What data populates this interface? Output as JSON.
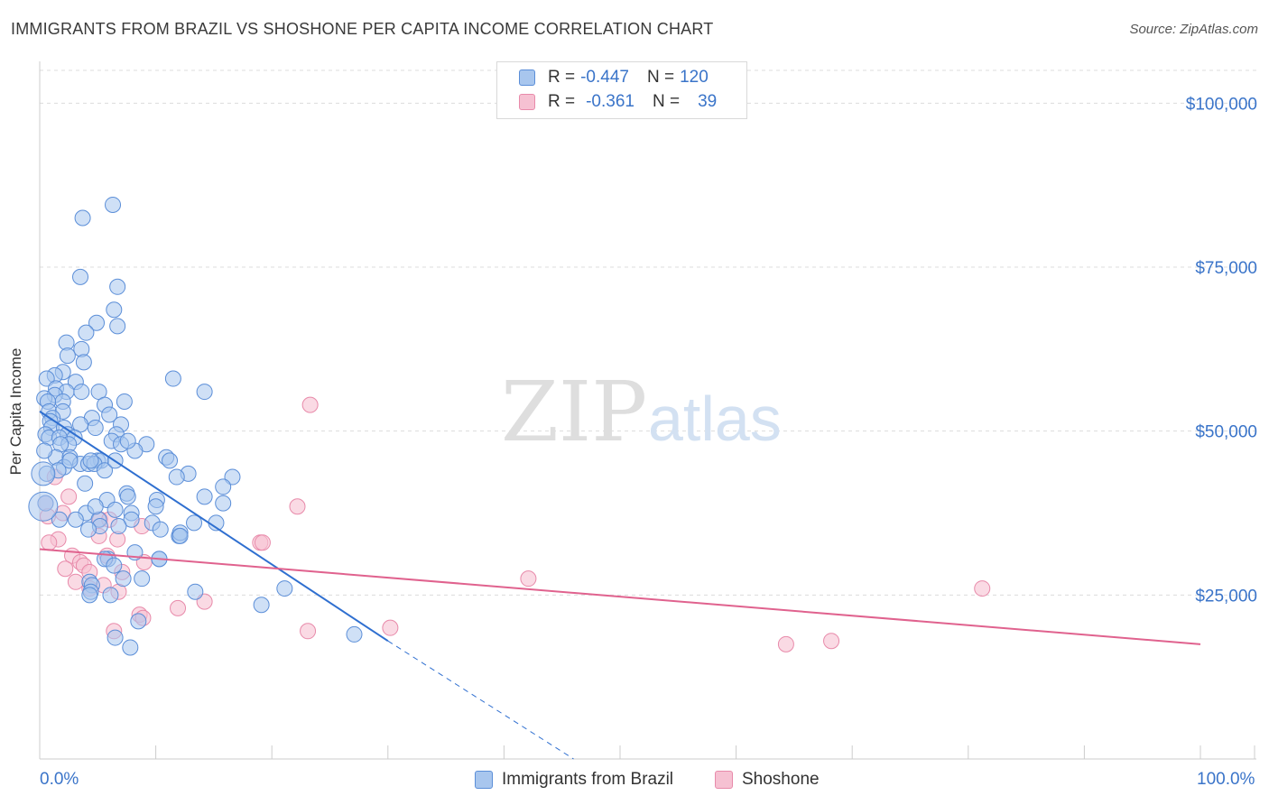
{
  "title": "IMMIGRANTS FROM BRAZIL VS SHOSHONE PER CAPITA INCOME CORRELATION CHART",
  "source": "Source: ZipAtlas.com",
  "watermark_zip": "ZIP",
  "watermark_atlas": "atlas",
  "legend": {
    "row1": {
      "r_label": "R =",
      "r_value": "-0.447",
      "n_label": "N =",
      "n_value": "120"
    },
    "row2": {
      "r_label": "R =",
      "r_value": "-0.361",
      "n_label": "N =",
      "n_value": "39"
    }
  },
  "x_axis": {
    "min_label": "0.0%",
    "max_label": "100.0%"
  },
  "colors": {
    "blue": "#5b8ed8",
    "blue_fill": "#a8c6ee",
    "blue_line": "#2f6fd0",
    "pink": "#e88aaa",
    "pink_fill": "#f6c1d2",
    "pink_line": "#e0628e",
    "axis_text": "#3a74c9"
  },
  "chart_data": {
    "type": "scatter",
    "title": "IMMIGRANTS FROM BRAZIL VS SHOSHONE PER CAPITA INCOME CORRELATION CHART",
    "xlabel": "",
    "ylabel": "Per Capita Income",
    "xlim": [
      0,
      100
    ],
    "ylim": [
      0,
      105000
    ],
    "y_ticks": [
      25000,
      50000,
      75000,
      100000
    ],
    "y_tick_labels": [
      "$25,000",
      "$50,000",
      "$75,000",
      "$100,000"
    ],
    "series": [
      {
        "name": "Immigrants from Brazil",
        "r": -0.447,
        "n": 120,
        "trend": {
          "x0": 0,
          "y0": 53000,
          "x1": 30,
          "y1": 18000,
          "dash_x_end": 46,
          "dash_y_end": 0
        },
        "points": [
          [
            6.3,
            84500
          ],
          [
            3.7,
            82500
          ],
          [
            3.5,
            73500
          ],
          [
            6.7,
            72000
          ],
          [
            6.4,
            68500
          ],
          [
            4.9,
            66500
          ],
          [
            6.7,
            66000
          ],
          [
            4.0,
            65000
          ],
          [
            2.3,
            63500
          ],
          [
            3.6,
            62500
          ],
          [
            2.4,
            61500
          ],
          [
            3.8,
            60500
          ],
          [
            2.0,
            59000
          ],
          [
            1.3,
            58500
          ],
          [
            0.6,
            58000
          ],
          [
            11.5,
            58000
          ],
          [
            3.1,
            57500
          ],
          [
            1.4,
            56500
          ],
          [
            2.3,
            56000
          ],
          [
            3.6,
            56000
          ],
          [
            5.1,
            56000
          ],
          [
            14.2,
            56000
          ],
          [
            1.3,
            55500
          ],
          [
            0.4,
            55000
          ],
          [
            2.0,
            54500
          ],
          [
            7.3,
            54500
          ],
          [
            0.7,
            54500
          ],
          [
            5.6,
            54000
          ],
          [
            0.8,
            53000
          ],
          [
            2.0,
            53000
          ],
          [
            6.0,
            52500
          ],
          [
            1.1,
            52000
          ],
          [
            4.5,
            52000
          ],
          [
            0.9,
            51500
          ],
          [
            3.5,
            51000
          ],
          [
            1.0,
            50500
          ],
          [
            7.0,
            51000
          ],
          [
            4.8,
            50500
          ],
          [
            2.1,
            50500
          ],
          [
            0.5,
            49500
          ],
          [
            0.8,
            49000
          ],
          [
            2.4,
            49500
          ],
          [
            6.6,
            49500
          ],
          [
            1.7,
            49000
          ],
          [
            3.0,
            49000
          ],
          [
            6.2,
            48500
          ],
          [
            2.5,
            48000
          ],
          [
            1.8,
            48000
          ],
          [
            7.0,
            48000
          ],
          [
            9.2,
            48000
          ],
          [
            8.2,
            47000
          ],
          [
            1.4,
            46000
          ],
          [
            2.6,
            46000
          ],
          [
            5.0,
            45500
          ],
          [
            3.5,
            45000
          ],
          [
            4.2,
            45000
          ],
          [
            5.3,
            45500
          ],
          [
            10.9,
            46000
          ],
          [
            11.2,
            45500
          ],
          [
            4.7,
            45000
          ],
          [
            2.1,
            44500
          ],
          [
            5.6,
            44000
          ],
          [
            12.8,
            43500
          ],
          [
            11.8,
            43000
          ],
          [
            16.6,
            43000
          ],
          [
            15.8,
            41500
          ],
          [
            3.9,
            42000
          ],
          [
            7.5,
            40500
          ],
          [
            7.6,
            40000
          ],
          [
            10.1,
            39500
          ],
          [
            14.2,
            40000
          ],
          [
            15.8,
            39000
          ],
          [
            5.8,
            39500
          ],
          [
            10.0,
            38500
          ],
          [
            6.5,
            38000
          ],
          [
            4.0,
            37500
          ],
          [
            7.9,
            37500
          ],
          [
            3.1,
            36500
          ],
          [
            5.1,
            36500
          ],
          [
            9.7,
            36000
          ],
          [
            13.3,
            36000
          ],
          [
            15.2,
            36000
          ],
          [
            7.9,
            36500
          ],
          [
            5.2,
            35500
          ],
          [
            6.8,
            35500
          ],
          [
            4.2,
            35000
          ],
          [
            10.4,
            35000
          ],
          [
            12.0,
            34000
          ],
          [
            12.1,
            34500
          ],
          [
            8.2,
            31500
          ],
          [
            10.3,
            30500
          ],
          [
            5.9,
            30500
          ],
          [
            5.6,
            30500
          ],
          [
            6.4,
            29500
          ],
          [
            7.2,
            27500
          ],
          [
            8.8,
            27500
          ],
          [
            4.3,
            27000
          ],
          [
            4.5,
            26500
          ],
          [
            21.1,
            26000
          ],
          [
            13.4,
            25500
          ],
          [
            4.4,
            25500
          ],
          [
            19.1,
            23500
          ],
          [
            8.5,
            21000
          ],
          [
            6.5,
            18500
          ],
          [
            27.1,
            19000
          ],
          [
            7.8,
            17000
          ],
          [
            1.6,
            44000
          ],
          [
            0.6,
            43500
          ],
          [
            0.5,
            39000
          ],
          [
            1.7,
            36500
          ],
          [
            6.1,
            25000
          ],
          [
            4.3,
            25000
          ],
          [
            12.1,
            34000
          ],
          [
            10.3,
            30500
          ],
          [
            4.8,
            38500
          ],
          [
            2.6,
            45500
          ],
          [
            6.5,
            45500
          ],
          [
            0.4,
            47000
          ],
          [
            4.4,
            45500
          ],
          [
            7.6,
            48500
          ]
        ]
      },
      {
        "name": "Shoshone",
        "r": -0.361,
        "n": 39,
        "trend": {
          "x0": 0,
          "y0": 32000,
          "x1": 100,
          "y1": 17500
        },
        "points": [
          [
            1.3,
            43000
          ],
          [
            2.5,
            40000
          ],
          [
            0.5,
            39000
          ],
          [
            0.7,
            37000
          ],
          [
            2.0,
            37500
          ],
          [
            1.6,
            33500
          ],
          [
            0.8,
            33000
          ],
          [
            5.2,
            36500
          ],
          [
            6.0,
            36500
          ],
          [
            8.8,
            35500
          ],
          [
            5.1,
            34000
          ],
          [
            6.7,
            33500
          ],
          [
            2.8,
            31000
          ],
          [
            5.8,
            31000
          ],
          [
            3.5,
            30000
          ],
          [
            3.8,
            29500
          ],
          [
            9.0,
            30000
          ],
          [
            4.3,
            28500
          ],
          [
            2.2,
            29000
          ],
          [
            7.1,
            28500
          ],
          [
            3.1,
            27000
          ],
          [
            5.5,
            26500
          ],
          [
            4.3,
            26000
          ],
          [
            6.8,
            25500
          ],
          [
            14.2,
            24000
          ],
          [
            11.9,
            23000
          ],
          [
            8.6,
            22000
          ],
          [
            8.9,
            21500
          ],
          [
            6.4,
            19500
          ],
          [
            23.1,
            19500
          ],
          [
            30.2,
            20000
          ],
          [
            22.2,
            38500
          ],
          [
            19.0,
            33000
          ],
          [
            19.2,
            33000
          ],
          [
            23.3,
            54000
          ],
          [
            42.1,
            27500
          ],
          [
            81.2,
            26000
          ],
          [
            64.3,
            17500
          ],
          [
            68.2,
            18000
          ]
        ]
      }
    ]
  },
  "bottom_legend": {
    "item1": "Immigrants from Brazil",
    "item2": "Shoshone"
  }
}
